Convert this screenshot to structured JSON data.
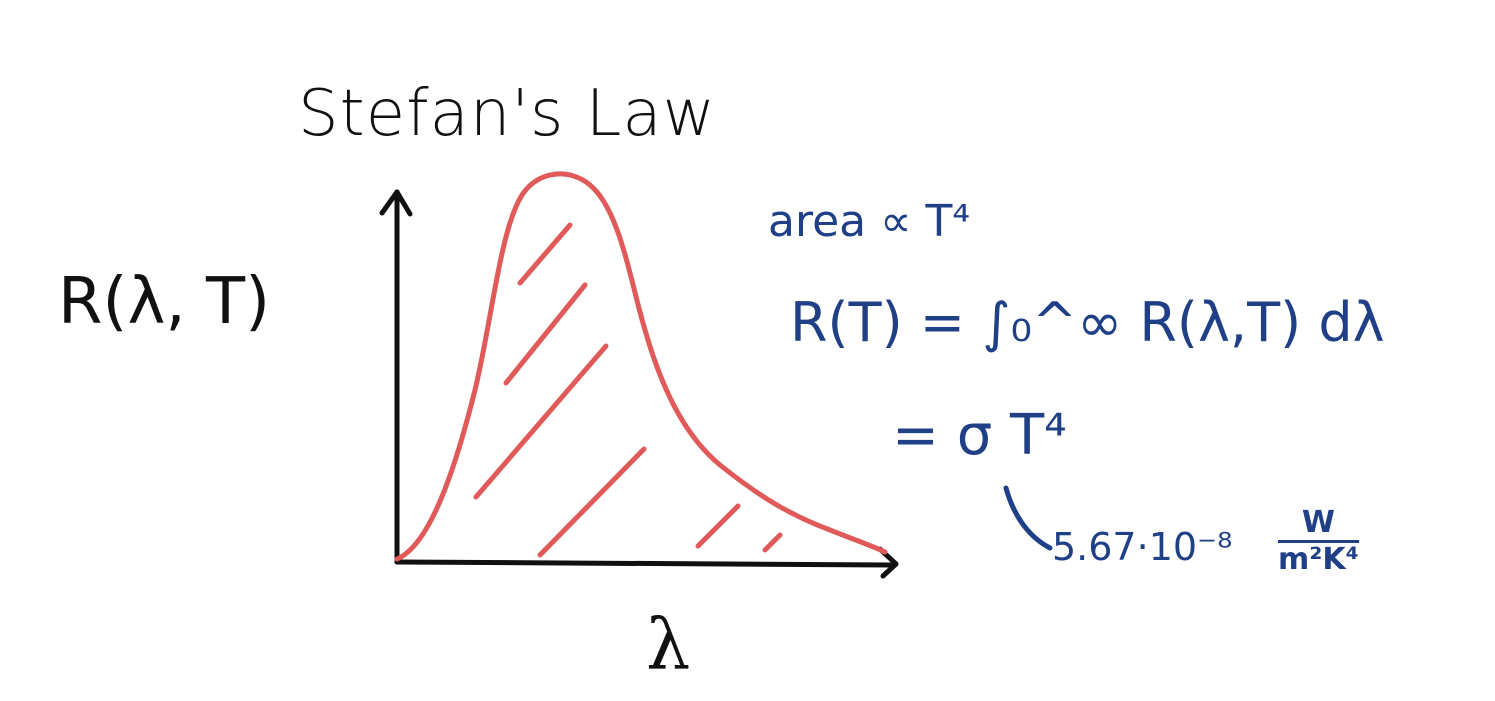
{
  "title": "Stefan's Law",
  "ylabel": "R(λ, T)",
  "xlabel": "λ",
  "notes": {
    "area": "area ∝ T⁴",
    "integral": "R(T) = ∫₀^∞ R(λ,T) dλ",
    "equals": "= σ T⁴",
    "constant": "5.67·10⁻⁸",
    "units_numerator": "W",
    "units_denominator": "m²K⁴"
  },
  "colors": {
    "ink": "#111111",
    "curve": "#e05a5a",
    "annotation": "#1f3f86"
  }
}
